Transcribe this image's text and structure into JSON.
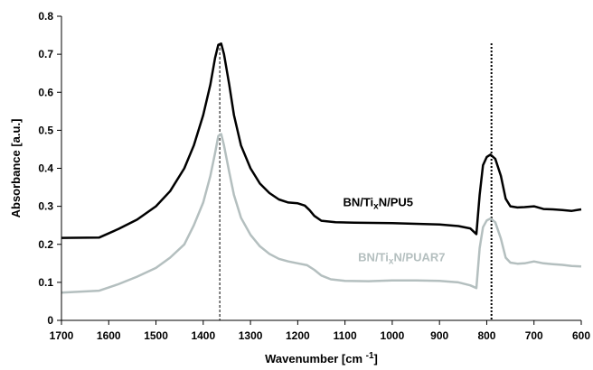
{
  "chart_data": {
    "type": "line",
    "title": "",
    "xlabel": "Wavenumber [cm ",
    "xlabel_sup": "-1",
    "xlabel_end": "]",
    "ylabel": "Absorbance [a.u.]",
    "xlim": [
      1700,
      600
    ],
    "ylim": [
      0,
      0.8
    ],
    "x_reversed": true,
    "grid": false,
    "x_ticks": [
      1700,
      1600,
      1500,
      1400,
      1300,
      1200,
      1100,
      1000,
      900,
      800,
      700,
      600
    ],
    "y_ticks": [
      0,
      0.1,
      0.2,
      0.3,
      0.4,
      0.5,
      0.6,
      0.7,
      0.8
    ],
    "reference_lines_x": [
      1365,
      790
    ],
    "series": [
      {
        "name": "BN/TixN/PU5",
        "label_parts": [
          "BN/Ti",
          "x",
          "N/PU5"
        ],
        "label_at": [
          1030,
          0.3
        ],
        "color": "#000000",
        "points": [
          [
            1700,
            0.217
          ],
          [
            1620,
            0.218
          ],
          [
            1580,
            0.24
          ],
          [
            1540,
            0.265
          ],
          [
            1500,
            0.3
          ],
          [
            1470,
            0.34
          ],
          [
            1440,
            0.4
          ],
          [
            1420,
            0.46
          ],
          [
            1400,
            0.54
          ],
          [
            1385,
            0.62
          ],
          [
            1375,
            0.69
          ],
          [
            1368,
            0.725
          ],
          [
            1362,
            0.728
          ],
          [
            1356,
            0.7
          ],
          [
            1345,
            0.62
          ],
          [
            1335,
            0.54
          ],
          [
            1320,
            0.46
          ],
          [
            1300,
            0.4
          ],
          [
            1280,
            0.36
          ],
          [
            1260,
            0.335
          ],
          [
            1240,
            0.318
          ],
          [
            1220,
            0.31
          ],
          [
            1200,
            0.308
          ],
          [
            1185,
            0.302
          ],
          [
            1175,
            0.29
          ],
          [
            1165,
            0.275
          ],
          [
            1150,
            0.262
          ],
          [
            1120,
            0.258
          ],
          [
            1080,
            0.257
          ],
          [
            1000,
            0.256
          ],
          [
            950,
            0.254
          ],
          [
            900,
            0.252
          ],
          [
            860,
            0.248
          ],
          [
            835,
            0.242
          ],
          [
            822,
            0.227
          ],
          [
            815,
            0.33
          ],
          [
            808,
            0.408
          ],
          [
            800,
            0.43
          ],
          [
            792,
            0.436
          ],
          [
            782,
            0.425
          ],
          [
            770,
            0.38
          ],
          [
            760,
            0.32
          ],
          [
            750,
            0.3
          ],
          [
            735,
            0.297
          ],
          [
            720,
            0.298
          ],
          [
            700,
            0.3
          ],
          [
            680,
            0.293
          ],
          [
            660,
            0.292
          ],
          [
            640,
            0.29
          ],
          [
            620,
            0.288
          ],
          [
            600,
            0.292
          ]
        ]
      },
      {
        "name": "BN/TixN/PUAR7",
        "label_parts": [
          "BN/Ti",
          "x",
          "N/PUAR7"
        ],
        "label_at": [
          980,
          0.155
        ],
        "color": "#b4bfbf",
        "points": [
          [
            1700,
            0.073
          ],
          [
            1620,
            0.078
          ],
          [
            1580,
            0.095
          ],
          [
            1540,
            0.115
          ],
          [
            1500,
            0.138
          ],
          [
            1470,
            0.165
          ],
          [
            1440,
            0.2
          ],
          [
            1420,
            0.25
          ],
          [
            1400,
            0.31
          ],
          [
            1385,
            0.38
          ],
          [
            1375,
            0.44
          ],
          [
            1368,
            0.485
          ],
          [
            1362,
            0.49
          ],
          [
            1356,
            0.46
          ],
          [
            1345,
            0.39
          ],
          [
            1335,
            0.33
          ],
          [
            1320,
            0.27
          ],
          [
            1300,
            0.225
          ],
          [
            1280,
            0.195
          ],
          [
            1260,
            0.175
          ],
          [
            1240,
            0.162
          ],
          [
            1220,
            0.155
          ],
          [
            1200,
            0.15
          ],
          [
            1180,
            0.145
          ],
          [
            1165,
            0.133
          ],
          [
            1150,
            0.118
          ],
          [
            1130,
            0.108
          ],
          [
            1100,
            0.104
          ],
          [
            1050,
            0.103
          ],
          [
            1000,
            0.105
          ],
          [
            950,
            0.105
          ],
          [
            900,
            0.104
          ],
          [
            860,
            0.1
          ],
          [
            835,
            0.092
          ],
          [
            822,
            0.085
          ],
          [
            815,
            0.19
          ],
          [
            808,
            0.245
          ],
          [
            800,
            0.263
          ],
          [
            792,
            0.268
          ],
          [
            782,
            0.258
          ],
          [
            770,
            0.215
          ],
          [
            760,
            0.165
          ],
          [
            750,
            0.152
          ],
          [
            735,
            0.149
          ],
          [
            720,
            0.15
          ],
          [
            700,
            0.155
          ],
          [
            680,
            0.15
          ],
          [
            660,
            0.148
          ],
          [
            640,
            0.146
          ],
          [
            620,
            0.143
          ],
          [
            600,
            0.142
          ]
        ]
      }
    ]
  }
}
